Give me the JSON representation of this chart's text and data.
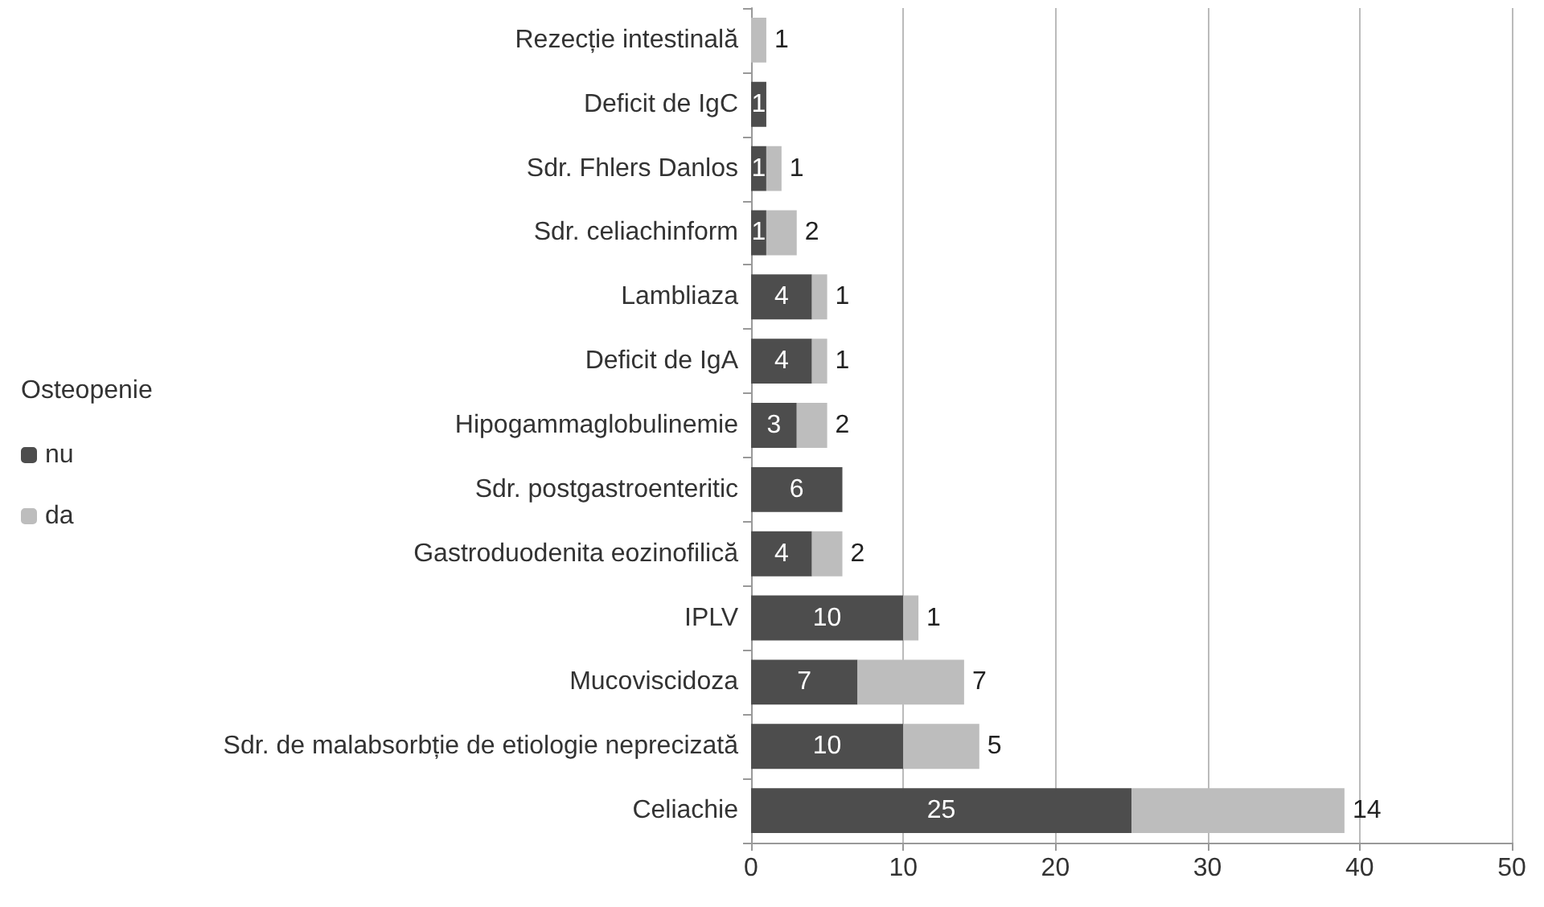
{
  "chart_data": {
    "type": "bar",
    "orientation": "horizontal",
    "stacked": true,
    "categories": [
      "Rezecție intestinală",
      "Deficit de IgC",
      "Sdr. Fhlers Danlos",
      "Sdr. celiachinform",
      "Lambliaza",
      "Deficit de IgA",
      "Hipogammaglobulinemie",
      "Sdr. postgastroenteritic",
      "Gastroduodenita eozinofilică",
      "IPLV",
      "Mucoviscidoza",
      "Sdr. de malabsorbție de etiologie neprecizată",
      "Celiachie"
    ],
    "series": [
      {
        "name": "nu",
        "color": "#4d4d4d",
        "values": [
          null,
          1,
          1,
          1,
          4,
          4,
          3,
          6,
          4,
          10,
          7,
          10,
          25
        ],
        "value_labels": [
          null,
          "1",
          "1",
          "1",
          "4",
          "4",
          "3",
          "6",
          "4",
          "10",
          "7",
          "10",
          "25"
        ]
      },
      {
        "name": "da",
        "color": "#bdbdbd",
        "values": [
          1,
          null,
          1,
          2,
          1,
          1,
          2,
          null,
          2,
          1,
          7,
          5,
          14
        ],
        "value_labels": [
          "1",
          null,
          "1",
          "2",
          "1",
          "1",
          "2",
          null,
          "2",
          "1",
          "7",
          "5",
          "14"
        ]
      }
    ],
    "xlim": [
      0,
      50
    ],
    "xticks": [
      0,
      10,
      20,
      30,
      40,
      50
    ],
    "grid": "x",
    "legend": "left",
    "legend_title": "Osteopenie"
  }
}
